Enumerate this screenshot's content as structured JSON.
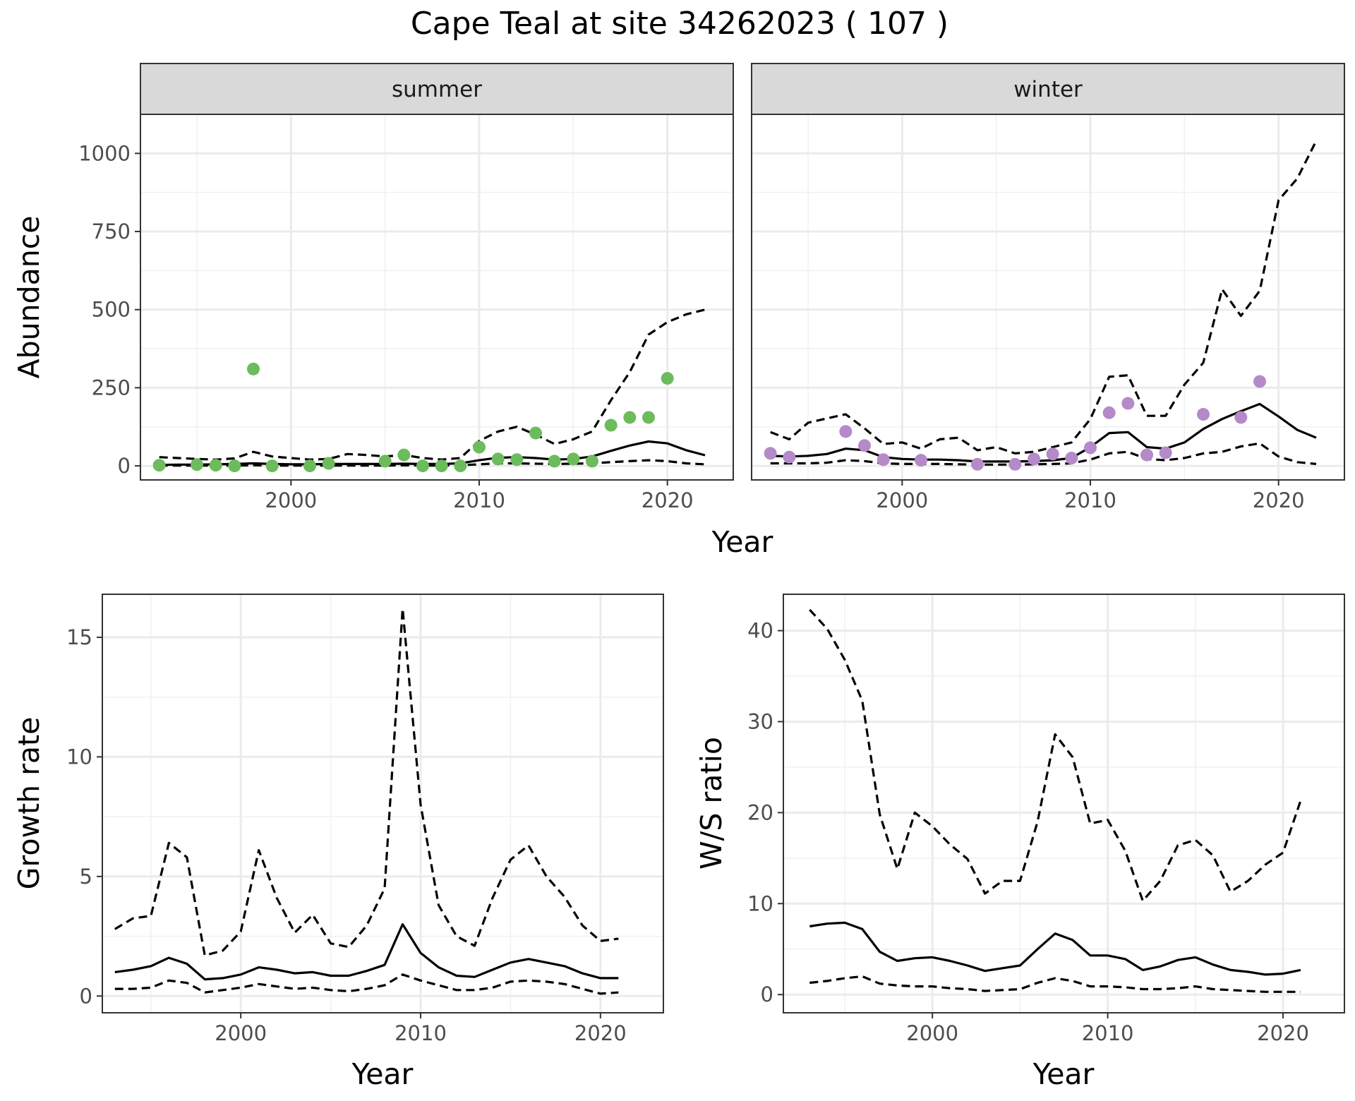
{
  "title": "Cape Teal at site 34262023 ( 107 )",
  "chart_data": [
    {
      "id": "abundance",
      "type": "line",
      "facets": [
        "summer",
        "winter"
      ],
      "xlabel": "Year",
      "ylabel": "Abundance",
      "xlim": [
        1992,
        2023.5
      ],
      "ylim": [
        -45,
        1125
      ],
      "x_ticks": [
        2000,
        2010,
        2020
      ],
      "y_ticks": [
        0,
        250,
        500,
        750,
        1000
      ],
      "grid": true,
      "line_style": {
        "estimate": "solid",
        "lower": "dashed",
        "upper": "dashed"
      },
      "colors": {
        "summer_points": "#6cbb5c",
        "winter_points": "#b48ac8"
      },
      "panels": [
        {
          "facet": "summer",
          "years": [
            1993,
            1994,
            1995,
            1996,
            1997,
            1998,
            1999,
            2000,
            2001,
            2002,
            2003,
            2004,
            2005,
            2006,
            2007,
            2008,
            2009,
            2010,
            2011,
            2012,
            2013,
            2014,
            2015,
            2016,
            2017,
            2018,
            2019,
            2020,
            2021,
            2022
          ],
          "estimate": [
            3,
            4,
            4,
            5,
            6,
            8,
            6,
            5,
            5,
            6,
            6,
            6,
            6,
            7,
            6,
            6,
            8,
            18,
            26,
            28,
            25,
            20,
            22,
            30,
            48,
            65,
            78,
            72,
            50,
            34
          ],
          "lower": [
            1,
            1,
            1,
            1,
            1,
            2,
            1,
            1,
            1,
            1,
            1,
            1,
            1,
            2,
            1,
            1,
            2,
            5,
            8,
            8,
            7,
            6,
            7,
            8,
            12,
            15,
            18,
            15,
            8,
            5
          ],
          "upper": [
            28,
            25,
            22,
            20,
            24,
            45,
            30,
            25,
            20,
            22,
            38,
            35,
            30,
            35,
            25,
            20,
            25,
            80,
            110,
            125,
            100,
            70,
            85,
            110,
            210,
            300,
            420,
            460,
            485,
            500
          ],
          "observed_x": [
            1993,
            1995,
            1996,
            1997,
            1998,
            1999,
            2001,
            2002,
            2005,
            2006,
            2007,
            2008,
            2009,
            2010,
            2011,
            2012,
            2013,
            2014,
            2015,
            2016,
            2017,
            2018,
            2019,
            2020
          ],
          "observed_y": [
            2,
            4,
            2,
            0,
            310,
            0,
            0,
            8,
            15,
            35,
            0,
            0,
            0,
            60,
            22,
            20,
            105,
            15,
            22,
            15,
            130,
            155,
            155,
            280
          ]
        },
        {
          "facet": "winter",
          "years": [
            1993,
            1994,
            1995,
            1996,
            1997,
            1998,
            1999,
            2000,
            2001,
            2002,
            2003,
            2004,
            2005,
            2006,
            2007,
            2008,
            2009,
            2010,
            2011,
            2012,
            2013,
            2014,
            2015,
            2016,
            2017,
            2018,
            2019,
            2020,
            2021,
            2022
          ],
          "estimate": [
            32,
            30,
            32,
            38,
            55,
            50,
            28,
            22,
            20,
            20,
            18,
            14,
            14,
            14,
            15,
            18,
            25,
            60,
            105,
            108,
            60,
            55,
            75,
            118,
            150,
            175,
            198,
            158,
            115,
            90
          ],
          "lower": [
            8,
            8,
            8,
            10,
            18,
            15,
            8,
            6,
            6,
            6,
            5,
            4,
            4,
            4,
            5,
            6,
            8,
            20,
            40,
            45,
            22,
            18,
            25,
            40,
            45,
            62,
            72,
            30,
            12,
            6
          ],
          "upper": [
            108,
            85,
            138,
            152,
            165,
            120,
            70,
            75,
            55,
            85,
            90,
            50,
            60,
            40,
            45,
            60,
            75,
            150,
            285,
            290,
            160,
            160,
            260,
            330,
            565,
            480,
            560,
            850,
            920,
            1040
          ],
          "observed_x": [
            1993,
            1994,
            1997,
            1998,
            1999,
            2001,
            2004,
            2006,
            2007,
            2008,
            2009,
            2010,
            2011,
            2012,
            2013,
            2014,
            2016,
            2018,
            2019
          ],
          "observed_y": [
            40,
            28,
            110,
            65,
            20,
            18,
            5,
            5,
            22,
            38,
            25,
            58,
            170,
            200,
            35,
            42,
            165,
            155,
            270
          ]
        }
      ]
    },
    {
      "id": "growth",
      "type": "line",
      "xlabel": "Year",
      "ylabel": "Growth rate",
      "xlim": [
        1992.3,
        2023.5
      ],
      "ylim": [
        -0.7,
        16.8
      ],
      "x_ticks": [
        2000,
        2010,
        2020
      ],
      "y_ticks": [
        0,
        5,
        10,
        15
      ],
      "grid": true,
      "line_style": {
        "estimate": "solid",
        "lower": "dashed",
        "upper": "dashed"
      },
      "years": [
        1993,
        1994,
        1995,
        1996,
        1997,
        1998,
        1999,
        2000,
        2001,
        2002,
        2003,
        2004,
        2005,
        2006,
        2007,
        2008,
        2009,
        2010,
        2011,
        2012,
        2013,
        2014,
        2015,
        2016,
        2017,
        2018,
        2019,
        2020,
        2021
      ],
      "estimate": [
        1.0,
        1.1,
        1.25,
        1.6,
        1.35,
        0.7,
        0.75,
        0.9,
        1.2,
        1.1,
        0.95,
        1.0,
        0.85,
        0.85,
        1.05,
        1.3,
        3.0,
        1.8,
        1.2,
        0.85,
        0.8,
        1.1,
        1.4,
        1.55,
        1.4,
        1.25,
        0.95,
        0.75,
        0.75
      ],
      "lower": [
        0.3,
        0.3,
        0.35,
        0.65,
        0.55,
        0.15,
        0.25,
        0.35,
        0.5,
        0.4,
        0.3,
        0.35,
        0.25,
        0.2,
        0.3,
        0.45,
        0.9,
        0.65,
        0.45,
        0.25,
        0.25,
        0.35,
        0.6,
        0.65,
        0.6,
        0.5,
        0.3,
        0.1,
        0.15
      ],
      "upper": [
        2.8,
        3.25,
        3.35,
        6.4,
        5.8,
        1.7,
        1.9,
        2.7,
        6.1,
        4.1,
        2.65,
        3.4,
        2.2,
        2.05,
        2.95,
        4.5,
        16.2,
        8.0,
        3.8,
        2.5,
        2.1,
        4.1,
        5.7,
        6.3,
        5.0,
        4.15,
        2.95,
        2.3,
        2.4
      ]
    },
    {
      "id": "ws_ratio",
      "type": "line",
      "xlabel": "Year",
      "ylabel": "W/S ratio",
      "xlim": [
        1991.5,
        2023.5
      ],
      "ylim": [
        -2,
        44
      ],
      "x_ticks": [
        2000,
        2010,
        2020
      ],
      "y_ticks": [
        0,
        10,
        20,
        30,
        40
      ],
      "grid": true,
      "line_style": {
        "estimate": "solid",
        "lower": "dashed",
        "upper": "dashed"
      },
      "years": [
        1993,
        1994,
        1995,
        1996,
        1997,
        1998,
        1999,
        2000,
        2001,
        2002,
        2003,
        2004,
        2005,
        2006,
        2007,
        2008,
        2009,
        2010,
        2011,
        2012,
        2013,
        2014,
        2015,
        2016,
        2017,
        2018,
        2019,
        2020,
        2021
      ],
      "estimate": [
        7.5,
        7.8,
        7.9,
        7.2,
        4.7,
        3.7,
        4.0,
        4.1,
        3.7,
        3.2,
        2.6,
        2.9,
        3.2,
        5.0,
        6.7,
        6.0,
        4.3,
        4.3,
        3.9,
        2.7,
        3.1,
        3.8,
        4.1,
        3.3,
        2.7,
        2.5,
        2.2,
        2.3,
        2.7
      ],
      "lower": [
        1.3,
        1.5,
        1.8,
        2.0,
        1.2,
        1.0,
        0.9,
        0.9,
        0.7,
        0.6,
        0.4,
        0.5,
        0.6,
        1.3,
        1.8,
        1.5,
        0.9,
        0.9,
        0.8,
        0.6,
        0.6,
        0.7,
        0.9,
        0.6,
        0.5,
        0.4,
        0.3,
        0.3,
        0.3
      ],
      "upper": [
        42.3,
        40.2,
        36.8,
        32.3,
        19.8,
        13.8,
        20.0,
        18.5,
        16.5,
        14.9,
        11.1,
        12.5,
        12.5,
        19.0,
        28.6,
        26.1,
        18.8,
        19.2,
        15.8,
        10.3,
        12.5,
        16.4,
        17.0,
        15.3,
        11.3,
        12.5,
        14.3,
        15.6,
        21.3
      ]
    }
  ]
}
